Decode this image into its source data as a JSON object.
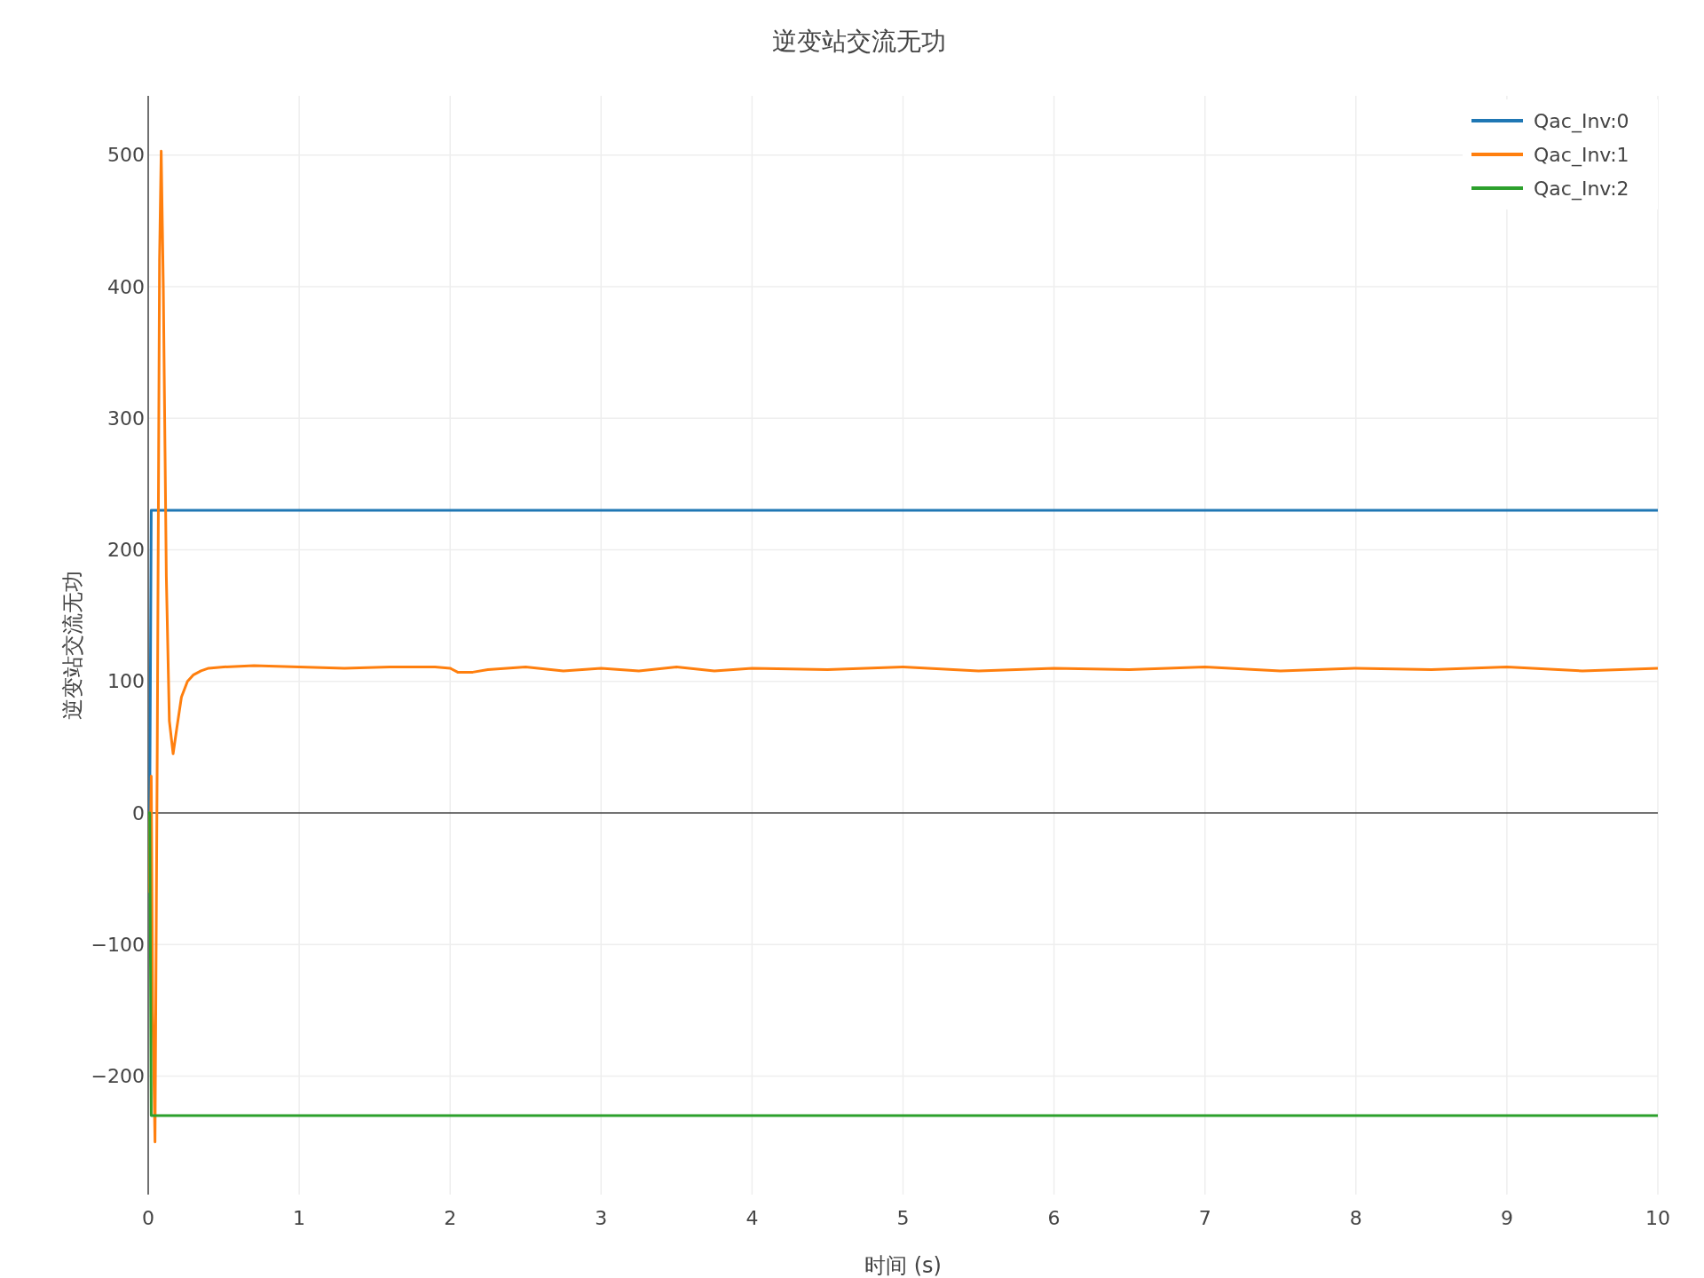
{
  "chart_data": {
    "type": "line",
    "title": "逆变站交流无功",
    "xlabel": "时间 (s)",
    "ylabel": "逆变站交流无功",
    "xlim": [
      0,
      10
    ],
    "xticks": [
      0,
      1,
      2,
      3,
      4,
      5,
      6,
      7,
      8,
      9,
      10
    ],
    "ylim": [
      -290,
      545
    ],
    "yticks": [
      {
        "value": -200,
        "label": "−200"
      },
      {
        "value": -100,
        "label": "−100"
      },
      0,
      100,
      200,
      300,
      400,
      500
    ],
    "grid": true,
    "legend": "top right",
    "line_style": "solid",
    "marker": "none",
    "series": [
      {
        "name": "Qac_Inv:0",
        "color": "#1f77b4",
        "x": [
          0,
          0.01,
          0.02,
          10
        ],
        "values": [
          0,
          0,
          230,
          230
        ]
      },
      {
        "name": "Qac_Inv:1",
        "color": "#ff7f0e",
        "x": [
          0,
          0.01,
          0.02,
          0.03,
          0.045,
          0.06,
          0.075,
          0.086,
          0.1,
          0.12,
          0.14,
          0.165,
          0.19,
          0.22,
          0.26,
          0.3,
          0.35,
          0.4,
          0.5,
          0.7,
          1.0,
          1.3,
          1.6,
          1.9,
          2.0,
          2.05,
          2.15,
          2.25,
          2.5,
          2.75,
          3.0,
          3.25,
          3.5,
          3.75,
          4.0,
          4.5,
          5.0,
          5.5,
          6.0,
          6.5,
          7.0,
          7.5,
          8.0,
          8.5,
          9.0,
          9.5,
          10.0
        ],
        "values": [
          0,
          -60,
          28,
          -150,
          -250,
          50,
          420,
          503,
          400,
          180,
          70,
          45,
          65,
          88,
          100,
          105,
          108,
          110,
          111,
          112,
          111,
          110,
          111,
          111,
          110,
          107,
          107,
          109,
          111,
          108,
          110,
          108,
          111,
          108,
          110,
          109,
          111,
          108,
          110,
          109,
          111,
          108,
          110,
          109,
          111,
          108,
          110
        ]
      },
      {
        "name": "Qac_Inv:2",
        "color": "#2ca02c",
        "x": [
          0,
          0.01,
          0.02,
          10
        ],
        "values": [
          0,
          0,
          -230,
          -230
        ]
      }
    ]
  }
}
